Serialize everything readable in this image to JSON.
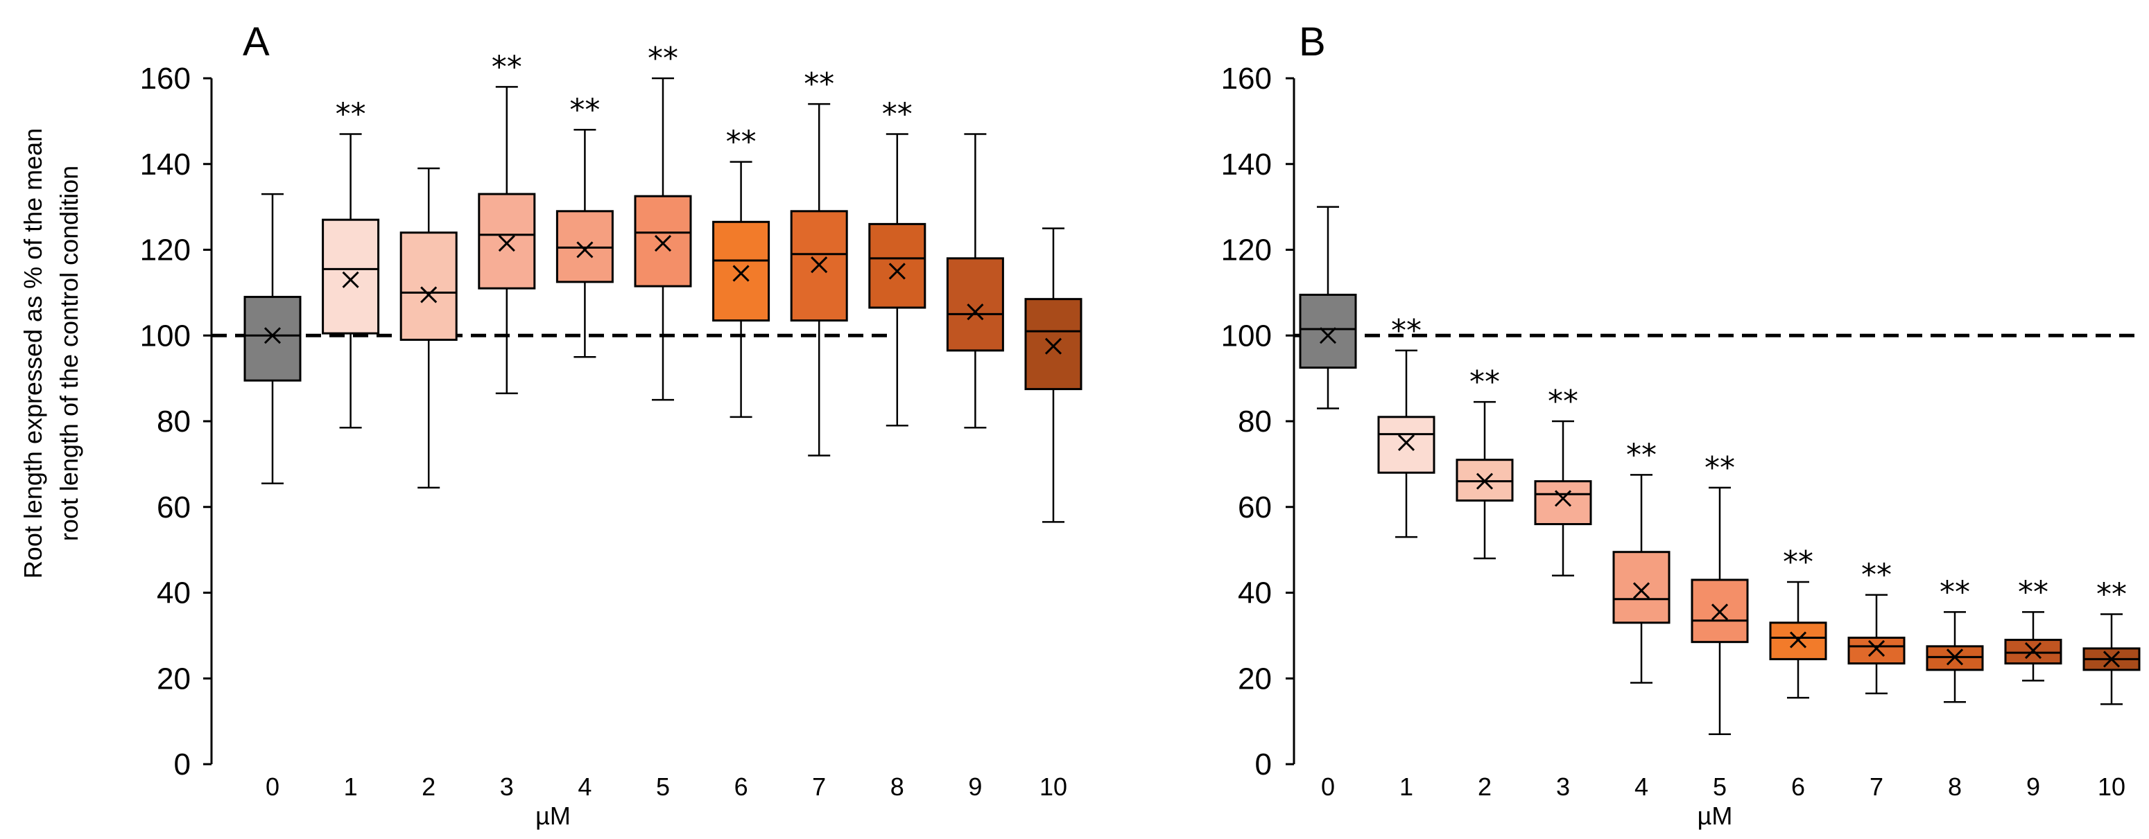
{
  "chart_data": {
    "type": "boxplot",
    "ylabel_lines": [
      "Root length expressed as % of the mean",
      "root length of the control condition"
    ],
    "ylim": [
      0,
      160
    ],
    "yticks": [
      0,
      20,
      40,
      60,
      80,
      100,
      120,
      140,
      160
    ],
    "categories": [
      "0",
      "1",
      "2",
      "3",
      "4",
      "5",
      "6",
      "7",
      "8",
      "9",
      "10"
    ],
    "xlabel": "µM",
    "reference_line": 100,
    "significance_mark": "**",
    "colors": [
      "#7f7f7f",
      "#fbdcd2",
      "#f9c4b0",
      "#f7ae96",
      "#f59f80",
      "#f48f68",
      "#f27b2a",
      "#e0692a",
      "#d25f22",
      "#c05521",
      "#a94b1a"
    ],
    "panels": [
      {
        "label": "A",
        "boxes": [
          {
            "category": "0",
            "min": 65.5,
            "q1": 89.5,
            "median": 100,
            "q3": 109,
            "max": 133,
            "mean": 100,
            "sig": false
          },
          {
            "category": "1",
            "min": 78.5,
            "q1": 100.5,
            "median": 115.5,
            "q3": 127,
            "max": 147,
            "mean": 113,
            "sig": true
          },
          {
            "category": "2",
            "min": 64.5,
            "q1": 99,
            "median": 110,
            "q3": 124,
            "max": 139,
            "mean": 109.5,
            "sig": false
          },
          {
            "category": "3",
            "min": 86.5,
            "q1": 111,
            "median": 123.5,
            "q3": 133,
            "max": 158,
            "mean": 121.5,
            "sig": true
          },
          {
            "category": "4",
            "min": 95,
            "q1": 112.5,
            "median": 120.5,
            "q3": 129,
            "max": 148,
            "mean": 120,
            "sig": true
          },
          {
            "category": "5",
            "min": 85,
            "q1": 111.5,
            "median": 124,
            "q3": 132.5,
            "max": 160,
            "mean": 121.5,
            "sig": true
          },
          {
            "category": "6",
            "min": 81,
            "q1": 103.5,
            "median": 117.5,
            "q3": 126.5,
            "max": 140.5,
            "mean": 114.5,
            "sig": true
          },
          {
            "category": "7",
            "min": 72,
            "q1": 103.5,
            "median": 119,
            "q3": 129,
            "max": 154,
            "mean": 116.5,
            "sig": true
          },
          {
            "category": "8",
            "min": 79,
            "q1": 106.5,
            "median": 118,
            "q3": 126,
            "max": 147,
            "mean": 115,
            "sig": true
          },
          {
            "category": "9",
            "min": 78.5,
            "q1": 96.5,
            "median": 105,
            "q3": 118,
            "max": 147,
            "mean": 105.5,
            "sig": false
          },
          {
            "category": "10",
            "min": 56.5,
            "q1": 87.5,
            "median": 101,
            "q3": 108.5,
            "max": 125,
            "mean": 97.5,
            "sig": false
          }
        ]
      },
      {
        "label": "B",
        "boxes": [
          {
            "category": "0",
            "min": 83,
            "q1": 92.5,
            "median": 101.5,
            "q3": 109.5,
            "max": 130,
            "mean": 100,
            "sig": false
          },
          {
            "category": "1",
            "min": 53,
            "q1": 68,
            "median": 77,
            "q3": 81,
            "max": 96.5,
            "mean": 75,
            "sig": true
          },
          {
            "category": "2",
            "min": 48,
            "q1": 61.5,
            "median": 66,
            "q3": 71,
            "max": 84.5,
            "mean": 66,
            "sig": true
          },
          {
            "category": "3",
            "min": 44,
            "q1": 56,
            "median": 63,
            "q3": 66,
            "max": 80,
            "mean": 62,
            "sig": true
          },
          {
            "category": "4",
            "min": 19,
            "q1": 33,
            "median": 38.5,
            "q3": 49.5,
            "max": 67.5,
            "mean": 40.5,
            "sig": true
          },
          {
            "category": "5",
            "min": 7,
            "q1": 28.5,
            "median": 33.5,
            "q3": 43,
            "max": 64.5,
            "mean": 35.5,
            "sig": true
          },
          {
            "category": "6",
            "min": 15.5,
            "q1": 24.5,
            "median": 29.5,
            "q3": 33,
            "max": 42.5,
            "mean": 29,
            "sig": true
          },
          {
            "category": "7",
            "min": 16.5,
            "q1": 23.5,
            "median": 27.5,
            "q3": 29.5,
            "max": 39.5,
            "mean": 27,
            "sig": true
          },
          {
            "category": "8",
            "min": 14.5,
            "q1": 22,
            "median": 25,
            "q3": 27.5,
            "max": 35.5,
            "mean": 25,
            "sig": true
          },
          {
            "category": "9",
            "min": 19.5,
            "q1": 23.5,
            "median": 26,
            "q3": 29,
            "max": 35.5,
            "mean": 26.5,
            "sig": true
          },
          {
            "category": "10",
            "min": 14,
            "q1": 22,
            "median": 24.5,
            "q3": 27,
            "max": 35,
            "mean": 24.5,
            "sig": true
          }
        ]
      }
    ]
  }
}
